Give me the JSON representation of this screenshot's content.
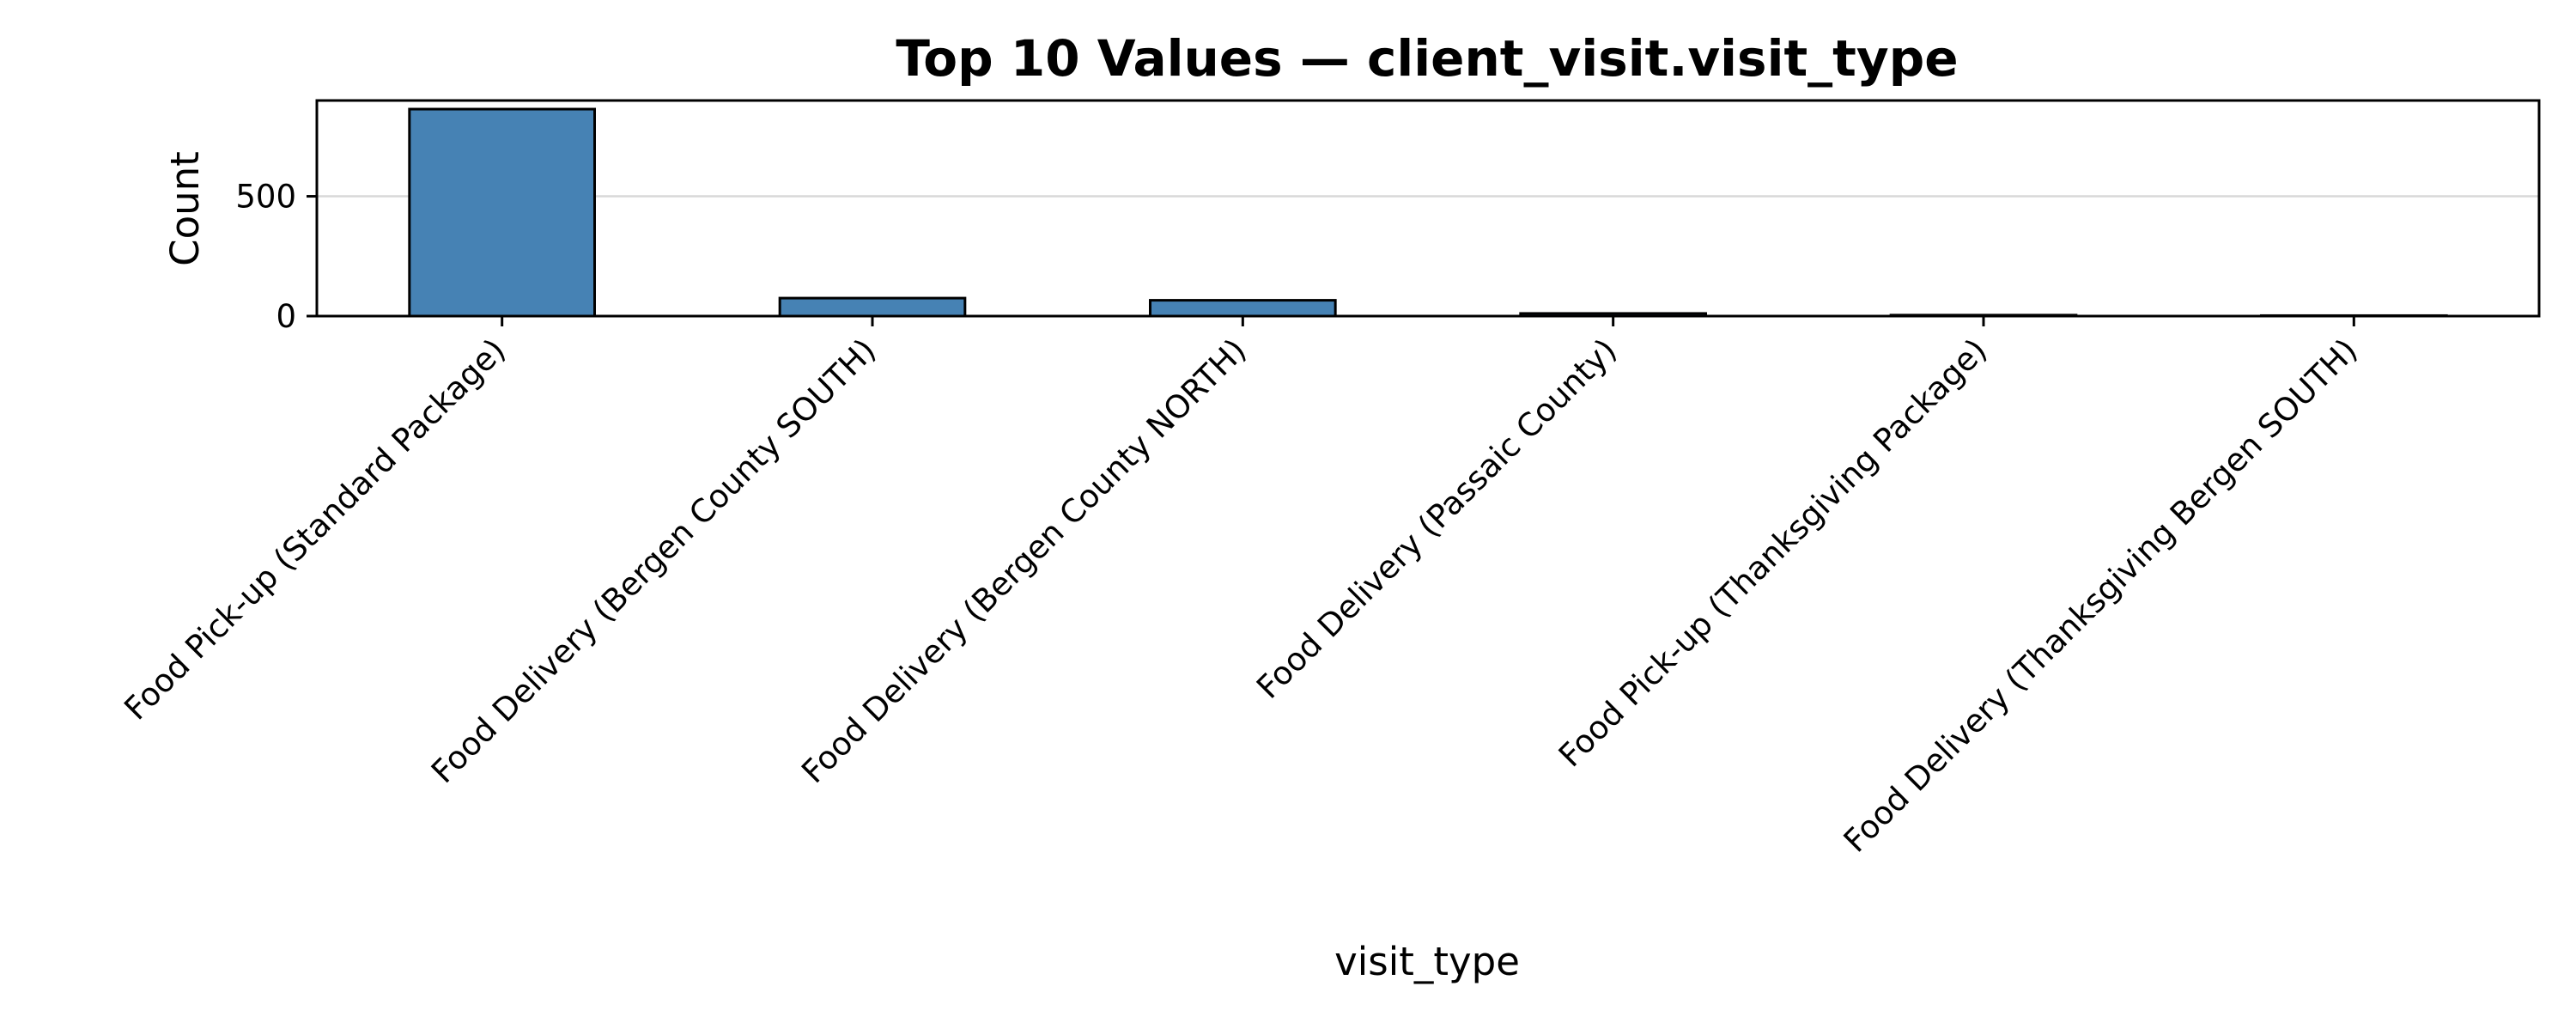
{
  "chart_data": {
    "type": "bar",
    "title": "Top 10 Values — client_visit.visit_type",
    "xlabel": "visit_type",
    "ylabel": "Count",
    "categories": [
      "Food Pick-up (Standard Package)",
      "Food Delivery (Bergen County SOUTH)",
      "Food Delivery (Bergen County NORTH)",
      "Food Delivery (Passaic County)",
      "Food Pick-up (Thanksgiving Package)",
      "Food Delivery (Thanksgiving Bergen SOUTH)"
    ],
    "values": [
      864,
      75,
      66,
      11,
      4,
      2
    ],
    "ylim": [
      0,
      900
    ],
    "yticks": [
      0,
      500
    ],
    "grid": "horizontal",
    "colors": {
      "bar": "#4682b4",
      "edge": "#000000",
      "grid": "#d9d9d9"
    }
  }
}
